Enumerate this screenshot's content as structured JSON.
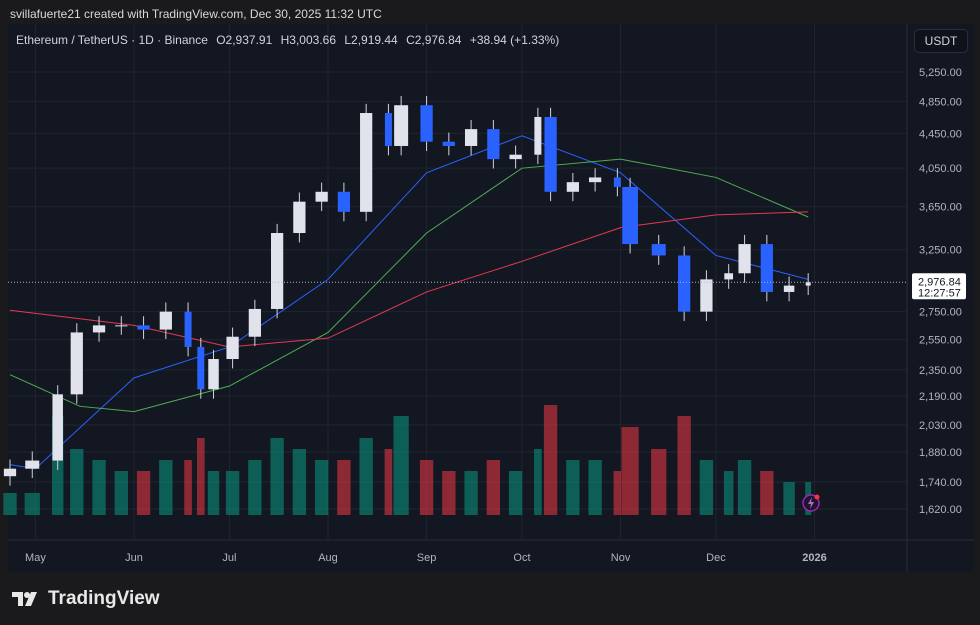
{
  "caption": "svillafuerte21 created with TradingView.com, Dec 30, 2025 11:32 UTC",
  "legend": {
    "symbol": "Ethereum / TetherUS · 1D · Binance",
    "open": "O2,937.91",
    "high": "H3,003.66",
    "low": "L2,919.44",
    "close": "C2,976.84",
    "change": "+38.94 (+1.33%)"
  },
  "currency": "USDT",
  "last_price": {
    "value": "2,976.84",
    "countdown": "12:27:57"
  },
  "brand": "TradingView",
  "colors": {
    "up": "#089981",
    "down": "#f23645",
    "ma_fast": "#2962ff",
    "ma_mid": "#4caf50",
    "ma_slow": "#e53950",
    "bg": "#131722"
  },
  "chart_data": {
    "type": "candlestick",
    "scale": "log",
    "grid": true,
    "ylim": [
      1580,
      5600
    ],
    "y_ticks": [
      "5,250.00",
      "4,850.00",
      "4,450.00",
      "4,050.00",
      "3,650.00",
      "3,250.00",
      "2,750.00",
      "2,550.00",
      "2,350.00",
      "2,190.00",
      "2,030.00",
      "1,880.00",
      "1,740.00",
      "1,620.00"
    ],
    "x_ticks": [
      {
        "label": "May",
        "date": "2025-05-01"
      },
      {
        "label": "Jun",
        "date": "2025-06-01"
      },
      {
        "label": "Jul",
        "date": "2025-07-01"
      },
      {
        "label": "Aug",
        "date": "2025-08-01"
      },
      {
        "label": "Sep",
        "date": "2025-09-01"
      },
      {
        "label": "Oct",
        "date": "2025-10-01"
      },
      {
        "label": "Nov",
        "date": "2025-11-01"
      },
      {
        "label": "Dec",
        "date": "2025-12-01"
      },
      {
        "label": "2026",
        "date": "2026-01-01"
      }
    ],
    "closes": [
      [
        "2025-04-23",
        1800
      ],
      [
        "2025-04-30",
        1840
      ],
      [
        "2025-05-08",
        2200
      ],
      [
        "2025-05-14",
        2600
      ],
      [
        "2025-05-21",
        2650
      ],
      [
        "2025-05-28",
        2650
      ],
      [
        "2025-06-04",
        2620
      ],
      [
        "2025-06-11",
        2750
      ],
      [
        "2025-06-18",
        2500
      ],
      [
        "2025-06-22",
        2230
      ],
      [
        "2025-06-26",
        2420
      ],
      [
        "2025-07-02",
        2570
      ],
      [
        "2025-07-09",
        2770
      ],
      [
        "2025-07-16",
        3400
      ],
      [
        "2025-07-23",
        3700
      ],
      [
        "2025-07-30",
        3800
      ],
      [
        "2025-08-06",
        3600
      ],
      [
        "2025-08-13",
        4700
      ],
      [
        "2025-08-20",
        4300
      ],
      [
        "2025-08-24",
        4800
      ],
      [
        "2025-09-01",
        4350
      ],
      [
        "2025-09-08",
        4300
      ],
      [
        "2025-09-15",
        4500
      ],
      [
        "2025-09-22",
        4150
      ],
      [
        "2025-09-29",
        4200
      ],
      [
        "2025-10-06",
        4650
      ],
      [
        "2025-10-10",
        3800
      ],
      [
        "2025-10-17",
        3900
      ],
      [
        "2025-10-24",
        3950
      ],
      [
        "2025-10-31",
        3850
      ],
      [
        "2025-11-04",
        3300
      ],
      [
        "2025-11-13",
        3200
      ],
      [
        "2025-11-21",
        2750
      ],
      [
        "2025-11-28",
        3000
      ],
      [
        "2025-12-05",
        3050
      ],
      [
        "2025-12-10",
        3300
      ],
      [
        "2025-12-17",
        2900
      ],
      [
        "2025-12-24",
        2950
      ],
      [
        "2025-12-30",
        2976.84
      ]
    ],
    "volume_relative": [
      0.2,
      0.2,
      0.9,
      0.6,
      0.5,
      0.4,
      0.4,
      0.5,
      0.5,
      0.7,
      0.4,
      0.4,
      0.5,
      0.7,
      0.6,
      0.5,
      0.5,
      0.7,
      0.6,
      0.9,
      0.5,
      0.4,
      0.4,
      0.5,
      0.4,
      0.6,
      1.0,
      0.5,
      0.5,
      0.4,
      0.8,
      0.6,
      0.9,
      0.5,
      0.4,
      0.5,
      0.4,
      0.3,
      0.3
    ],
    "moving_averages": [
      {
        "color": "#2962ff",
        "points": [
          [
            "2025-04-23",
            1820
          ],
          [
            "2025-05-01",
            1800
          ],
          [
            "2025-06-01",
            2300
          ],
          [
            "2025-07-01",
            2500
          ],
          [
            "2025-08-01",
            3000
          ],
          [
            "2025-09-01",
            4000
          ],
          [
            "2025-10-01",
            4420
          ],
          [
            "2025-11-01",
            4000
          ],
          [
            "2025-12-01",
            3200
          ],
          [
            "2025-12-30",
            3000
          ]
        ]
      },
      {
        "color": "#4caf50",
        "points": [
          [
            "2025-04-23",
            2320
          ],
          [
            "2025-05-15",
            2130
          ],
          [
            "2025-06-01",
            2100
          ],
          [
            "2025-07-01",
            2250
          ],
          [
            "2025-08-01",
            2600
          ],
          [
            "2025-09-01",
            3400
          ],
          [
            "2025-10-01",
            4050
          ],
          [
            "2025-11-01",
            4150
          ],
          [
            "2025-12-01",
            3950
          ],
          [
            "2025-12-30",
            3550
          ]
        ]
      },
      {
        "color": "#e53950",
        "points": [
          [
            "2025-04-23",
            2760
          ],
          [
            "2025-06-01",
            2650
          ],
          [
            "2025-07-01",
            2500
          ],
          [
            "2025-08-01",
            2560
          ],
          [
            "2025-09-01",
            2900
          ],
          [
            "2025-10-01",
            3150
          ],
          [
            "2025-11-01",
            3450
          ],
          [
            "2025-12-01",
            3570
          ],
          [
            "2025-12-30",
            3600
          ]
        ]
      }
    ]
  }
}
